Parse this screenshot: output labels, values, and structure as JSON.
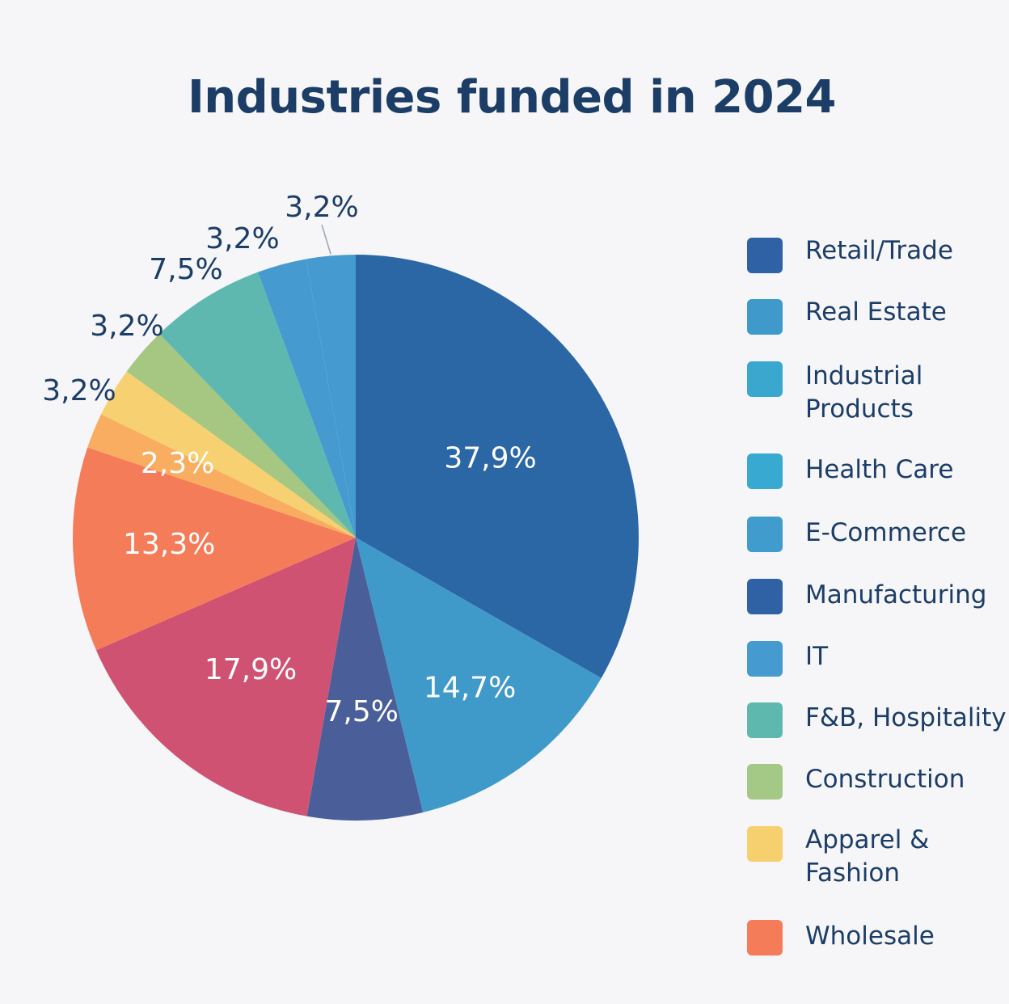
{
  "chart_data": {
    "type": "pie",
    "title": "Industries funded in 2024",
    "slices": [
      {
        "label": "Retail/Trade",
        "value": 37.9,
        "value_label": "37,9%",
        "color": "#2b67a5",
        "label_position": "inside",
        "label_color": "#ffffff"
      },
      {
        "label": "Real Estate",
        "value": 14.7,
        "value_label": "14,7%",
        "color": "#409ac9",
        "label_position": "inside",
        "label_color": "#ffffff"
      },
      {
        "label": "Manufacturing",
        "value": 7.5,
        "value_label": "7,5%",
        "color": "#4a5f99",
        "label_position": "inside",
        "label_color": "#ffffff"
      },
      {
        "label": "",
        "value": 17.9,
        "value_label": "17,9%",
        "color": "#d05272",
        "label_position": "inside",
        "label_color": "#ffffff"
      },
      {
        "label": "Wholesale",
        "value": 13.3,
        "value_label": "13,3%",
        "color": "#f47c58",
        "label_position": "inside",
        "label_color": "#ffffff"
      },
      {
        "label": "",
        "value": 2.3,
        "value_label": "2,3%",
        "color": "#f8ad60",
        "label_position": "inside",
        "label_color": "#ffffff"
      },
      {
        "label": "Apparel & Fashion",
        "value": 3.2,
        "value_label": "3,2%",
        "color": "#f7d071",
        "label_position": "outside",
        "label_color": "#1b3d66"
      },
      {
        "label": "Construction",
        "value": 3.2,
        "value_label": "3,2%",
        "color": "#a5c782",
        "label_position": "outside",
        "label_color": "#1b3d66"
      },
      {
        "label": "F&B, Hospitality",
        "value": 7.5,
        "value_label": "7,5%",
        "color": "#5fb8b0",
        "label_position": "outside",
        "label_color": "#1b3d66"
      },
      {
        "label": "IT",
        "value": 3.2,
        "value_label": "3,2%",
        "color": "#459bcf",
        "label_position": "outside",
        "label_color": "#1b3d66"
      },
      {
        "label": "",
        "value": 3.2,
        "value_label": "3,2%",
        "color": "#459bcf",
        "label_position": "outside",
        "label_color": "#1b3d66"
      }
    ],
    "legend": {
      "placement": "right",
      "items": [
        {
          "label": "Retail/Trade",
          "color": "#2e62a4"
        },
        {
          "label": "Real Estate",
          "color": "#3f9acb"
        },
        {
          "label": "Industrial\nProducts",
          "color": "#3aa7cf"
        },
        {
          "label": "Health Care",
          "color": "#38a9d1"
        },
        {
          "label": "E-Commerce",
          "color": "#409ccc"
        },
        {
          "label": "Manufacturing",
          "color": "#2e62a4"
        },
        {
          "label": "IT",
          "color": "#459bcf"
        },
        {
          "label": "F&B, Hospitality",
          "color": "#5eb8ae"
        },
        {
          "label": "Construction",
          "color": "#a4c885"
        },
        {
          "label": "Apparel &\nFashion",
          "color": "#f6d06f"
        },
        {
          "label": "Wholesale",
          "color": "#f47c58"
        }
      ]
    }
  }
}
